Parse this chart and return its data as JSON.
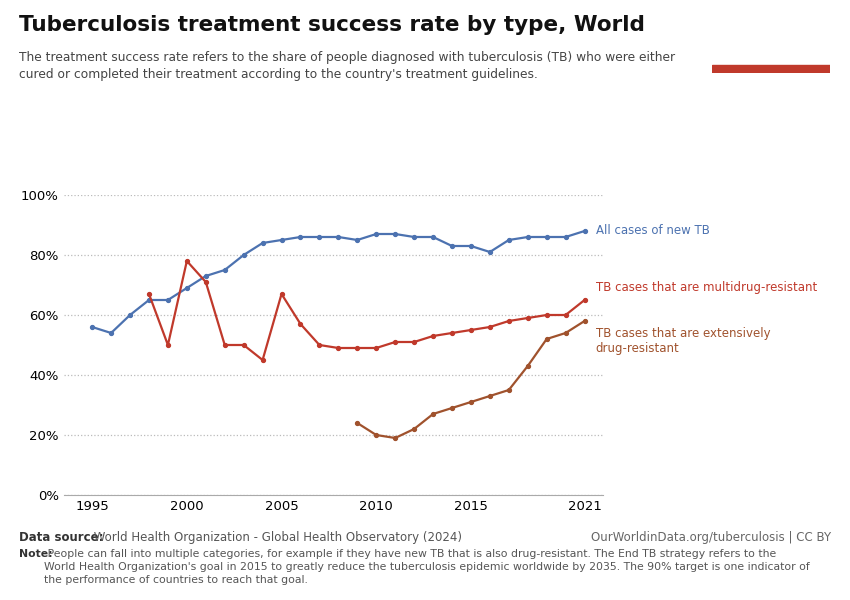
{
  "title": "Tuberculosis treatment success rate by type, World",
  "subtitle": "The treatment success rate refers to the share of people diagnosed with tuberculosis (TB) who were either\ncured or completed their treatment according to the country's treatment guidelines.",
  "datasource_bold": "Data source:",
  "datasource_rest": " World Health Organization - Global Health Observatory (2024)",
  "url": "OurWorldinData.org/tuberculosis | CC BY",
  "note_bold": "Note:",
  "note_rest": " People can fall into multiple categories, for example if they have new TB that is also drug-resistant. The End TB strategy refers to the\nWorld Health Organization's goal in 2015 to greatly reduce the tuberculosis epidemic worldwide by 2035. The 90% target is one indicator of\nthe performance of countries to reach that goal.",
  "new_tb": {
    "label": "All cases of new TB",
    "color": "#4c72b0",
    "years": [
      1995,
      1996,
      1997,
      1998,
      1999,
      2000,
      2001,
      2002,
      2003,
      2004,
      2005,
      2006,
      2007,
      2008,
      2009,
      2010,
      2011,
      2012,
      2013,
      2014,
      2015,
      2016,
      2017,
      2018,
      2019,
      2020,
      2021
    ],
    "values": [
      56,
      54,
      60,
      65,
      65,
      69,
      73,
      75,
      80,
      84,
      85,
      86,
      86,
      86,
      85,
      87,
      87,
      86,
      86,
      83,
      83,
      81,
      85,
      86,
      86,
      86,
      88
    ]
  },
  "mdr_tb": {
    "label": "TB cases that are multidrug-resistant",
    "color": "#c0392b",
    "years": [
      1998,
      1999,
      2000,
      2001,
      2002,
      2003,
      2004,
      2005,
      2006,
      2007,
      2008,
      2009,
      2010,
      2011,
      2012,
      2013,
      2014,
      2015,
      2016,
      2017,
      2018,
      2019,
      2020,
      2021
    ],
    "values": [
      67,
      50,
      78,
      71,
      50,
      50,
      45,
      67,
      57,
      50,
      49,
      49,
      49,
      51,
      51,
      53,
      54,
      55,
      56,
      58,
      59,
      60,
      60,
      65
    ]
  },
  "xdr_tb": {
    "label": "TB cases that are extensively\ndrug-resistant",
    "color": "#a0522d",
    "years": [
      2009,
      2010,
      2011,
      2012,
      2013,
      2014,
      2015,
      2016,
      2017,
      2018,
      2019,
      2020,
      2021
    ],
    "values": [
      24,
      20,
      19,
      22,
      27,
      29,
      31,
      33,
      35,
      43,
      52,
      54,
      58
    ]
  },
  "ylim": [
    0,
    100
  ],
  "yticks": [
    0,
    20,
    40,
    60,
    80,
    100
  ],
  "background_color": "#ffffff",
  "owid_box_bg": "#1a3558",
  "owid_box_red": "#c0392b"
}
